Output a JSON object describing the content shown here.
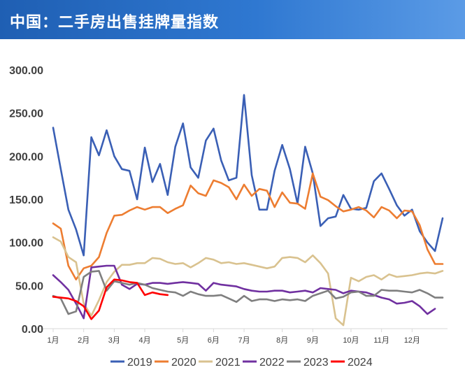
{
  "header": {
    "title": "中国：二手房出售挂牌量指数"
  },
  "chart_data": {
    "type": "line",
    "title": "中国：二手房出售挂牌量指数",
    "xlabel": "",
    "ylabel": "",
    "ylim": [
      0,
      300
    ],
    "y_ticks": [
      "0.00",
      "50.00",
      "100.00",
      "150.00",
      "200.00",
      "250.00",
      "300.00"
    ],
    "x_ticks": [
      "1月",
      "2月",
      "3月",
      "4月",
      "5月",
      "6月",
      "7月",
      "8月",
      "9月",
      "10月",
      "11月",
      "12月"
    ],
    "x_tick_weeks": [
      1,
      5,
      9,
      13,
      18,
      22,
      26,
      31,
      35,
      40,
      44,
      48
    ],
    "x_range": [
      1,
      52
    ],
    "grid": false,
    "legend_position": "bottom",
    "series": [
      {
        "name": "2019",
        "color": "#3a5fb5",
        "x": [
          1,
          2,
          3,
          4,
          5,
          6,
          7,
          8,
          9,
          10,
          11,
          12,
          13,
          14,
          15,
          16,
          17,
          18,
          19,
          20,
          21,
          22,
          23,
          24,
          25,
          26,
          27,
          28,
          29,
          30,
          31,
          32,
          33,
          34,
          35,
          36,
          37,
          38,
          39,
          40,
          41,
          42,
          43,
          44,
          45,
          46,
          47,
          48,
          49,
          50,
          51,
          52
        ],
        "values": [
          233,
          185,
          138,
          115,
          85,
          222,
          201,
          230,
          200,
          185,
          183,
          150,
          210,
          170,
          191,
          155,
          211,
          238,
          187,
          175,
          218,
          232,
          195,
          172,
          175,
          271,
          178,
          138,
          138,
          183,
          213,
          185,
          145,
          211,
          180,
          119,
          128,
          130,
          155,
          139,
          138,
          140,
          171,
          180,
          162,
          143,
          131,
          138,
          113,
          100,
          90,
          128
        ]
      },
      {
        "name": "2020",
        "color": "#ed7d31",
        "x": [
          1,
          2,
          3,
          4,
          5,
          6,
          7,
          8,
          9,
          10,
          11,
          12,
          13,
          14,
          15,
          16,
          17,
          18,
          19,
          20,
          21,
          22,
          23,
          24,
          25,
          26,
          27,
          28,
          29,
          30,
          31,
          32,
          33,
          34,
          35,
          36,
          37,
          38,
          39,
          40,
          41,
          42,
          43,
          44,
          45,
          46,
          47,
          48,
          49,
          50,
          51,
          52
        ],
        "values": [
          122,
          116,
          73,
          57,
          70,
          73,
          83,
          111,
          131,
          132,
          137,
          141,
          138,
          141,
          141,
          134,
          139,
          143,
          166,
          157,
          154,
          172,
          169,
          164,
          150,
          167,
          154,
          162,
          160,
          141,
          158,
          146,
          145,
          139,
          180,
          153,
          149,
          142,
          136,
          138,
          141,
          137,
          129,
          141,
          137,
          128,
          137,
          136,
          120,
          92,
          75,
          75
        ]
      },
      {
        "name": "2021",
        "color": "#d9c28f",
        "x": [
          1,
          2,
          3,
          4,
          5,
          6,
          7,
          8,
          9,
          10,
          11,
          12,
          13,
          14,
          15,
          16,
          17,
          18,
          19,
          20,
          21,
          22,
          23,
          24,
          25,
          26,
          27,
          28,
          29,
          30,
          31,
          32,
          33,
          34,
          35,
          36,
          37,
          38,
          39,
          40,
          41,
          42,
          43,
          44,
          45,
          46,
          47,
          48,
          49,
          50,
          51,
          52
        ],
        "values": [
          106,
          101,
          83,
          77,
          29,
          15,
          33,
          54,
          66,
          74,
          74,
          76,
          76,
          82,
          81,
          77,
          75,
          76,
          71,
          76,
          82,
          80,
          76,
          77,
          75,
          76,
          74,
          72,
          70,
          72,
          82,
          83,
          82,
          77,
          85,
          76,
          64,
          12,
          4,
          59,
          55,
          60,
          62,
          57,
          63,
          60,
          61,
          62,
          64,
          65,
          64,
          67
        ]
      },
      {
        "name": "2022",
        "color": "#7030a0",
        "x": [
          1,
          2,
          3,
          4,
          5,
          6,
          7,
          8,
          9,
          10,
          11,
          12,
          13,
          14,
          15,
          16,
          17,
          18,
          19,
          20,
          21,
          22,
          23,
          24,
          25,
          26,
          27,
          28,
          29,
          30,
          31,
          32,
          33,
          34,
          35,
          36,
          37,
          38,
          39,
          40,
          41,
          42,
          43,
          44,
          45,
          46,
          47,
          48,
          49,
          50,
          51
        ],
        "values": [
          62,
          54,
          45,
          29,
          12,
          71,
          72,
          73,
          73,
          51,
          46,
          52,
          51,
          53,
          53,
          52,
          53,
          54,
          53,
          52,
          44,
          53,
          51,
          50,
          49,
          46,
          44,
          43,
          43,
          44,
          44,
          42,
          43,
          44,
          42,
          47,
          46,
          45,
          41,
          44,
          43,
          42,
          39,
          36,
          34,
          29,
          30,
          32,
          26,
          17,
          23
        ]
      },
      {
        "name": "2023",
        "color": "#7f7f7f",
        "x": [
          1,
          2,
          3,
          4,
          5,
          6,
          7,
          8,
          9,
          10,
          11,
          12,
          13,
          14,
          15,
          16,
          17,
          18,
          19,
          20,
          21,
          22,
          23,
          24,
          25,
          26,
          27,
          28,
          29,
          30,
          31,
          32,
          33,
          34,
          35,
          36,
          37,
          38,
          39,
          40,
          41,
          42,
          43,
          44,
          45,
          46,
          47,
          48,
          49,
          50,
          51,
          52
        ],
        "values": [
          38,
          35,
          17,
          20,
          60,
          66,
          67,
          44,
          55,
          53,
          51,
          53,
          51,
          47,
          45,
          43,
          42,
          38,
          43,
          40,
          38,
          38,
          39,
          35,
          31,
          38,
          32,
          34,
          34,
          32,
          34,
          33,
          34,
          32,
          38,
          41,
          44,
          35,
          37,
          42,
          43,
          38,
          38,
          45,
          44,
          44,
          43,
          42,
          45,
          41,
          36,
          36
        ]
      },
      {
        "name": "2024",
        "color": "#ff0000",
        "x": [
          1,
          2,
          3,
          4,
          5,
          6,
          7,
          8,
          9,
          10,
          11,
          12,
          13,
          14,
          15,
          16
        ],
        "values": [
          37,
          36,
          35,
          32,
          26,
          11,
          21,
          48,
          57,
          56,
          54,
          53,
          39,
          42,
          40,
          39
        ]
      }
    ]
  }
}
